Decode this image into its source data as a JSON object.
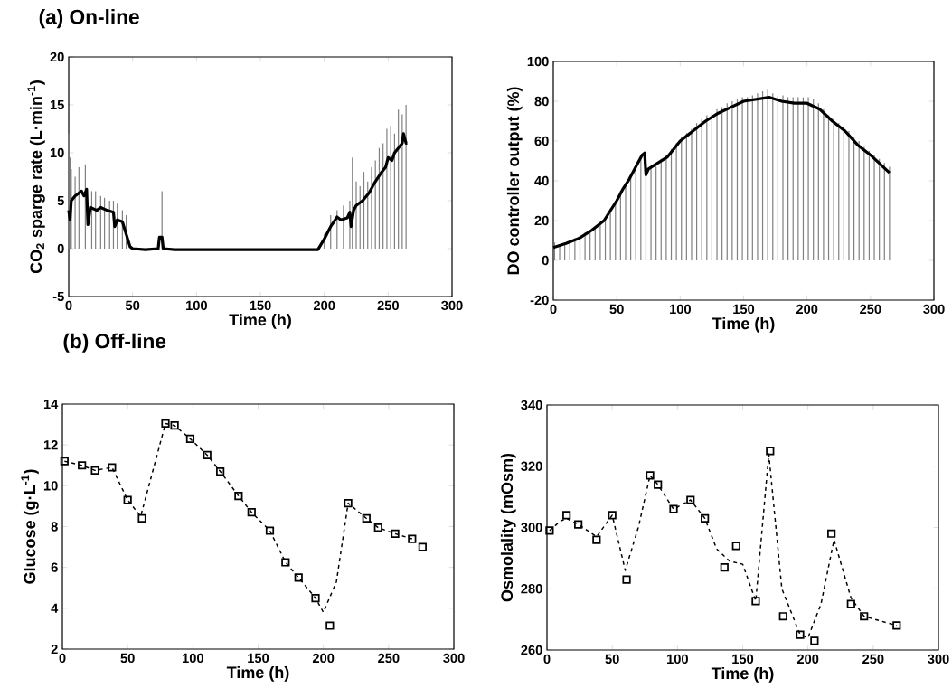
{
  "chart_data": [
    {
      "type": "line",
      "title": "(a) On-line",
      "xlabel": "Time (h)",
      "ylabel": "CO$_{2}$ sparge rate (L·min$^{-1}$)",
      "xlim": [
        0,
        300
      ],
      "ylim": [
        -5,
        20
      ],
      "xticks": [
        0,
        50,
        100,
        150,
        200,
        250,
        300
      ],
      "yticks": [
        -5,
        0,
        5,
        10,
        15,
        20
      ],
      "series": [
        {
          "type": "bar",
          "color": "#808080",
          "x": [
            0,
            1,
            2,
            5,
            8,
            13,
            18,
            21,
            25,
            28,
            32,
            35,
            38,
            42,
            45,
            73,
            200,
            205,
            210,
            215,
            220,
            222,
            225,
            228,
            231,
            234,
            237,
            240,
            243,
            246,
            249,
            252,
            255,
            258,
            261,
            264
          ],
          "values": [
            12,
            9.5,
            8.3,
            7.5,
            8.5,
            8.8,
            6,
            6,
            5.5,
            5.3,
            5,
            5,
            4.7,
            4,
            3.5,
            6,
            1.5,
            3.5,
            4,
            4.5,
            5,
            9.5,
            7,
            6.5,
            8,
            7,
            8.5,
            9.2,
            10.5,
            11,
            12.5,
            12.8,
            12,
            14.5,
            14,
            15
          ]
        },
        {
          "color": "#000000",
          "x": [
            0,
            1,
            2,
            5,
            10,
            12,
            14,
            15,
            17,
            22,
            25,
            30,
            35,
            36,
            38,
            42,
            45,
            48,
            50,
            60,
            70,
            71,
            73,
            74,
            83,
            195,
            200,
            205,
            210,
            213,
            218,
            220,
            221,
            223,
            225,
            230,
            235,
            240,
            245,
            248,
            250,
            253,
            255,
            258,
            261,
            262,
            264,
            265
          ],
          "values": [
            4,
            3,
            5,
            5.5,
            6,
            5.5,
            6.2,
            2.5,
            4.3,
            4,
            4.3,
            4,
            3.8,
            2.3,
            3,
            2.8,
            1.5,
            0.2,
            0,
            -0.1,
            0,
            1.2,
            1.2,
            0,
            -0.1,
            -0.1,
            1,
            2.3,
            3.3,
            3,
            3.2,
            3.8,
            2.3,
            4,
            4.5,
            5,
            5.8,
            7,
            8,
            8.5,
            9.5,
            9.2,
            10,
            10.5,
            11,
            12,
            11,
            11
          ]
        }
      ]
    },
    {
      "type": "line",
      "xlabel": "Time (h)",
      "ylabel": "DO controller output (%)",
      "xlim": [
        0,
        300
      ],
      "ylim": [
        -20,
        100
      ],
      "xticks": [
        0,
        50,
        100,
        150,
        200,
        250,
        300
      ],
      "yticks": [
        -20,
        0,
        20,
        40,
        60,
        80,
        100
      ],
      "series": [
        {
          "type": "bar",
          "color": "#808080",
          "x": [
            1,
            5,
            9,
            13,
            17,
            21,
            25,
            29,
            33,
            37,
            41,
            45,
            49,
            53,
            57,
            61,
            65,
            69,
            73,
            77,
            81,
            85,
            89,
            93,
            97,
            101,
            105,
            109,
            113,
            117,
            121,
            125,
            129,
            133,
            137,
            141,
            145,
            149,
            153,
            157,
            161,
            165,
            169,
            173,
            177,
            181,
            185,
            189,
            193,
            197,
            201,
            205,
            209,
            213,
            217,
            221,
            225,
            229,
            233,
            237,
            241,
            245,
            249,
            253,
            257,
            261,
            265
          ],
          "values": [
            9,
            8,
            9,
            10,
            11,
            12,
            14,
            15,
            17,
            18,
            21,
            26,
            30,
            35,
            39,
            43,
            48,
            53,
            52,
            47,
            49,
            51,
            53,
            56,
            59,
            62,
            64,
            66,
            69,
            71,
            73,
            74,
            76,
            77,
            79,
            80,
            81,
            82,
            82,
            83,
            84,
            85,
            86,
            84,
            83,
            83,
            82,
            82,
            82,
            82,
            82,
            81,
            79,
            76,
            73,
            71,
            69,
            67,
            65,
            62,
            60,
            57,
            55,
            53,
            51,
            49,
            47
          ]
        },
        {
          "color": "#000000",
          "x": [
            0,
            10,
            20,
            30,
            40,
            45,
            50,
            55,
            60,
            65,
            70,
            72,
            73,
            75,
            80,
            90,
            100,
            110,
            120,
            130,
            140,
            150,
            160,
            170,
            180,
            190,
            200,
            210,
            220,
            230,
            240,
            250,
            260,
            265
          ],
          "values": [
            6.5,
            8.5,
            11,
            15,
            20,
            25,
            30,
            36,
            41,
            47,
            53,
            54,
            43,
            46,
            48,
            52,
            60,
            65,
            70,
            74,
            77,
            80,
            81,
            82,
            80,
            79,
            79,
            76,
            70,
            65,
            58,
            53,
            47,
            44
          ]
        }
      ]
    },
    {
      "type": "line",
      "title": "(b) Off-line",
      "xlabel": "Time (h)",
      "ylabel": "Glucose (g·L$^{-1}$)",
      "xlim": [
        0,
        300
      ],
      "ylim": [
        2,
        14
      ],
      "xticks": [
        0,
        50,
        100,
        150,
        200,
        250,
        300
      ],
      "yticks": [
        2,
        4,
        6,
        8,
        10,
        12,
        14
      ],
      "series": [
        {
          "color": "#000000",
          "line_style": "dashed",
          "x": [
            1.6,
            15,
            25,
            38,
            50,
            60,
            79,
            86,
            98,
            111,
            121,
            135,
            145,
            159,
            171,
            181,
            194,
            200,
            210,
            219,
            233,
            242,
            255,
            268
          ],
          "values": [
            11.2,
            11.0,
            10.75,
            10.9,
            9.3,
            8.5,
            13.05,
            12.95,
            12.3,
            11.5,
            10.7,
            9.5,
            8.7,
            7.8,
            6.25,
            5.5,
            4.5,
            3.8,
            5.3,
            9.15,
            8.4,
            7.95,
            7.65,
            7.4
          ]
        },
        {
          "type": "scatter",
          "color": "#000000",
          "marker": "square",
          "x": [
            1.6,
            15,
            25,
            38,
            50,
            61,
            79,
            86,
            98,
            111,
            121,
            135,
            145,
            159,
            171,
            181,
            194,
            205,
            219,
            233,
            242,
            255,
            268,
            276
          ],
          "values": [
            11.2,
            11.0,
            10.75,
            10.9,
            9.3,
            8.4,
            13.05,
            12.95,
            12.3,
            11.5,
            10.7,
            9.5,
            8.7,
            7.8,
            6.25,
            5.5,
            4.5,
            3.15,
            9.15,
            8.4,
            7.95,
            7.65,
            7.4,
            7.0
          ]
        }
      ]
    },
    {
      "type": "line",
      "xlabel": "Time (h)",
      "ylabel": "Osmolality (mOsm)",
      "xlim": [
        0,
        300
      ],
      "ylim": [
        260,
        340
      ],
      "xticks": [
        0,
        50,
        100,
        150,
        200,
        250,
        300
      ],
      "yticks": [
        260,
        280,
        300,
        320,
        340
      ],
      "series": [
        {
          "color": "#000000",
          "line_style": "dashed",
          "x": [
            2,
            10,
            15,
            24,
            38,
            50,
            60,
            70,
            79,
            85,
            97,
            110,
            121,
            130,
            140,
            150,
            160,
            170,
            180,
            194,
            200,
            210,
            220,
            233,
            243,
            268
          ],
          "values": [
            299,
            302,
            303,
            301,
            297,
            304,
            286,
            300,
            317,
            314,
            306,
            309,
            303,
            293,
            289,
            288,
            276,
            324,
            280,
            265,
            264,
            275,
            296,
            277,
            271,
            268
          ]
        },
        {
          "type": "scatter",
          "color": "#000000",
          "marker": "square",
          "x": [
            2,
            15,
            24,
            38,
            50,
            61,
            79,
            85,
            97,
            110,
            121,
            136,
            145,
            160,
            171,
            181,
            194,
            205,
            218,
            233,
            243,
            268
          ],
          "values": [
            299,
            304,
            301,
            296,
            304,
            283,
            317,
            314,
            306,
            309,
            303,
            287,
            294,
            276,
            325,
            271,
            265,
            263,
            298,
            275,
            271,
            268
          ]
        }
      ]
    }
  ]
}
